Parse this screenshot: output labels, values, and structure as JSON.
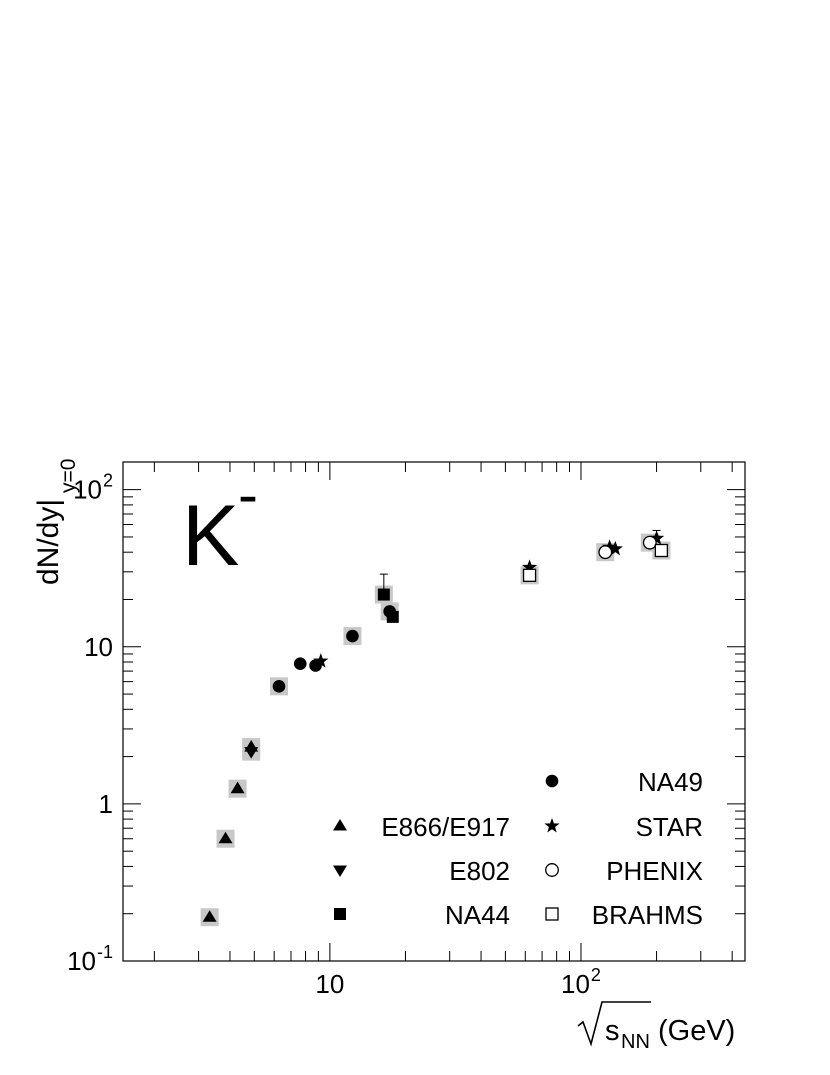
{
  "chart_data": {
    "type": "scatter",
    "x_scale": "log",
    "y_scale": "log",
    "xlim": [
      1.5,
      450
    ],
    "ylim": [
      0.1,
      150
    ],
    "label": "K",
    "label_sup": "-",
    "ylabel": "dN/dy|",
    "ylabel_sub": "y=0",
    "xlabel_sqrt": "s",
    "xlabel_sub": "NN",
    "xlabel_unit": "(GeV)",
    "x_ticks": [
      {
        "value": 10,
        "base": "10",
        "exp": ""
      },
      {
        "value": 100,
        "base": "10",
        "exp": "2"
      }
    ],
    "y_ticks": [
      {
        "value": 0.1,
        "base": "10",
        "exp": "-1"
      },
      {
        "value": 1,
        "base": "1",
        "exp": ""
      },
      {
        "value": 10,
        "base": "10",
        "exp": ""
      },
      {
        "value": 100,
        "base": "10",
        "exp": "2"
      }
    ],
    "series": [
      {
        "name": "E866/E917",
        "marker": "triangle-up",
        "points": [
          {
            "x": 3.32,
            "y": 0.19,
            "sys": true
          },
          {
            "x": 3.84,
            "y": 0.6,
            "sys": true
          },
          {
            "x": 4.29,
            "y": 1.25,
            "sys": true
          },
          {
            "x": 4.86,
            "y": 2.3,
            "sys": true
          }
        ]
      },
      {
        "name": "E802",
        "marker": "triangle-down",
        "points": [
          {
            "x": 4.86,
            "y": 2.15,
            "sys": true
          }
        ]
      },
      {
        "name": "NA44",
        "marker": "square-filled",
        "points": [
          {
            "x": 16.4,
            "y": 21.5,
            "sys": true,
            "err_up": 29
          },
          {
            "x": 17.8,
            "y": 15.5,
            "sys": false
          }
        ]
      },
      {
        "name": "NA49",
        "marker": "circle-filled",
        "points": [
          {
            "x": 6.27,
            "y": 5.6,
            "sys": true
          },
          {
            "x": 7.62,
            "y": 7.8,
            "sys": false
          },
          {
            "x": 8.77,
            "y": 7.6,
            "sys": false
          },
          {
            "x": 12.3,
            "y": 11.7,
            "sys": true
          },
          {
            "x": 17.3,
            "y": 16.8,
            "sys": true
          }
        ]
      },
      {
        "name": "STAR",
        "marker": "star",
        "points": [
          {
            "x": 9.2,
            "y": 8.1,
            "sys": false
          },
          {
            "x": 62.4,
            "y": 32,
            "sys": false
          },
          {
            "x": 130,
            "y": 43,
            "sys": false
          },
          {
            "x": 137,
            "y": 42,
            "sys": false
          },
          {
            "x": 200,
            "y": 49,
            "sys": false,
            "err_up": 55
          }
        ]
      },
      {
        "name": "PHENIX",
        "marker": "circle-open",
        "points": [
          {
            "x": 125,
            "y": 40,
            "sys": true
          },
          {
            "x": 188,
            "y": 46,
            "sys": true
          }
        ]
      },
      {
        "name": "BRAHMS",
        "marker": "square-open",
        "points": [
          {
            "x": 62.4,
            "y": 28.5,
            "sys": true
          },
          {
            "x": 209,
            "y": 41,
            "sys": true
          }
        ]
      }
    ],
    "legend_left": [
      "E866/E917",
      "E802",
      "NA44"
    ],
    "legend_right": [
      "NA49",
      "STAR",
      "PHENIX",
      "BRAHMS"
    ]
  }
}
